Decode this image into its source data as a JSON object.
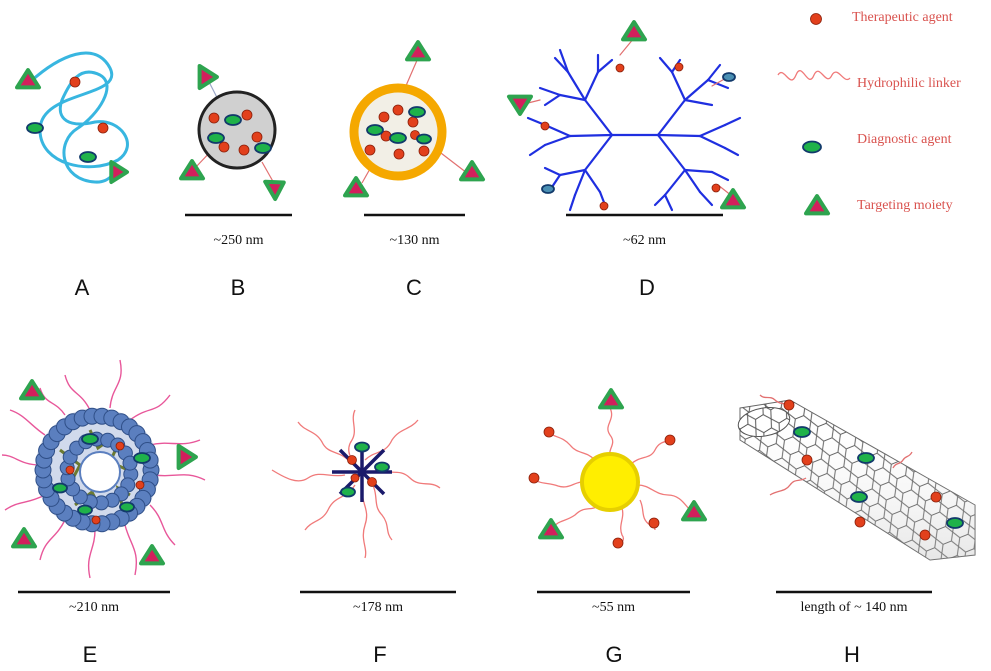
{
  "legend": {
    "therapeutic": "Therapeutic agent",
    "linker": "Hydrophilic linker",
    "diagnostic": "Diagnostic agent",
    "targeting": "Targeting moiety"
  },
  "panels": {
    "A": {
      "label": "A"
    },
    "B": {
      "label": "B",
      "size": "~250 nm"
    },
    "C": {
      "label": "C",
      "size": "~130 nm"
    },
    "D": {
      "label": "D",
      "size": "~62 nm"
    },
    "E": {
      "label": "E",
      "size": "~210 nm"
    },
    "F": {
      "label": "F",
      "size": "~178 nm"
    },
    "G": {
      "label": "G",
      "size": "~55 nm"
    },
    "H": {
      "label": "H",
      "size": "length of ~ 140  nm"
    }
  },
  "colors": {
    "therapeutic": "#e2401c",
    "diagnostic": "#1fb24a",
    "target_border": "#2ea44f",
    "target_fill": "#d21f5c",
    "linker": "#f07a7a",
    "polymer": "#38b6e0",
    "dendrimer": "#1f2fe0",
    "liposome_shell": "#f5a800",
    "micelle_bead": "#5b7fbf",
    "gold": "#ffee00"
  }
}
